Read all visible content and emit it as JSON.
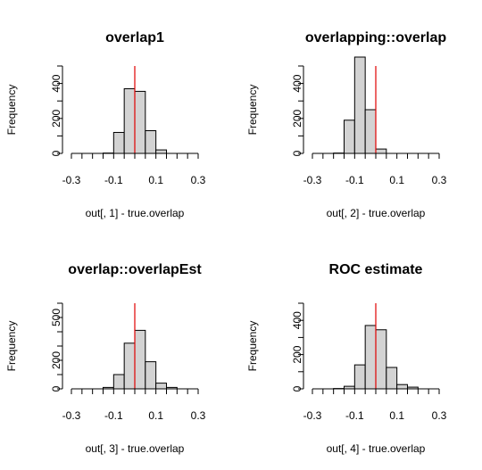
{
  "chart_data": [
    {
      "type": "bar",
      "title": "overlap1",
      "xlabel": "out[, 1] - true.overlap",
      "ylabel": "Frequency",
      "xlim": [
        -0.3,
        0.3
      ],
      "ylim": [
        0,
        500
      ],
      "x_ticks": [
        "-0.3",
        "-0.1",
        "0.1",
        "0.3"
      ],
      "y_ticks": [
        "0",
        "200",
        "400"
      ],
      "bin_width": 0.05,
      "bins": [
        {
          "from": -0.3,
          "to": -0.25,
          "count": 0
        },
        {
          "from": -0.25,
          "to": -0.2,
          "count": 0
        },
        {
          "from": -0.2,
          "to": -0.15,
          "count": 0
        },
        {
          "from": -0.15,
          "to": -0.1,
          "count": 2
        },
        {
          "from": -0.1,
          "to": -0.05,
          "count": 120
        },
        {
          "from": -0.05,
          "to": 0.0,
          "count": 370
        },
        {
          "from": 0.0,
          "to": 0.05,
          "count": 355
        },
        {
          "from": 0.05,
          "to": 0.1,
          "count": 130
        },
        {
          "from": 0.1,
          "to": 0.15,
          "count": 20
        },
        {
          "from": 0.15,
          "to": 0.2,
          "count": 0
        },
        {
          "from": 0.2,
          "to": 0.25,
          "count": 0
        },
        {
          "from": 0.25,
          "to": 0.3,
          "count": 0
        }
      ],
      "reference_line_x": 0.0,
      "reference_line_color": "#e00000"
    },
    {
      "type": "bar",
      "title": "overlapping::overlap",
      "xlabel": "out[, 2] - true.overlap",
      "ylabel": "Frequency",
      "xlim": [
        -0.3,
        0.3
      ],
      "ylim": [
        0,
        500
      ],
      "x_ticks": [
        "-0.3",
        "-0.1",
        "0.1",
        "0.3"
      ],
      "y_ticks": [
        "0",
        "200",
        "400"
      ],
      "bin_width": 0.05,
      "bins": [
        {
          "from": -0.3,
          "to": -0.25,
          "count": 0
        },
        {
          "from": -0.25,
          "to": -0.2,
          "count": 0
        },
        {
          "from": -0.2,
          "to": -0.15,
          "count": 2
        },
        {
          "from": -0.15,
          "to": -0.1,
          "count": 190
        },
        {
          "from": -0.1,
          "to": -0.05,
          "count": 560
        },
        {
          "from": -0.05,
          "to": 0.0,
          "count": 250
        },
        {
          "from": 0.0,
          "to": 0.05,
          "count": 25
        },
        {
          "from": 0.05,
          "to": 0.1,
          "count": 0
        },
        {
          "from": 0.1,
          "to": 0.15,
          "count": 0
        },
        {
          "from": 0.15,
          "to": 0.2,
          "count": 0
        },
        {
          "from": 0.2,
          "to": 0.25,
          "count": 0
        },
        {
          "from": 0.25,
          "to": 0.3,
          "count": 0
        }
      ],
      "reference_line_x": 0.0,
      "reference_line_color": "#e00000"
    },
    {
      "type": "bar",
      "title": "overlap::overlapEst",
      "xlabel": "out[, 3] - true.overlap",
      "ylabel": "Frequency",
      "xlim": [
        -0.3,
        0.3
      ],
      "ylim": [
        0,
        600
      ],
      "x_ticks": [
        "-0.3",
        "-0.1",
        "0.1",
        "0.3"
      ],
      "y_ticks": [
        "0",
        "200",
        "500"
      ],
      "bin_width": 0.05,
      "bins": [
        {
          "from": -0.3,
          "to": -0.25,
          "count": 0
        },
        {
          "from": -0.25,
          "to": -0.2,
          "count": 0
        },
        {
          "from": -0.2,
          "to": -0.15,
          "count": 0
        },
        {
          "from": -0.15,
          "to": -0.1,
          "count": 10
        },
        {
          "from": -0.1,
          "to": -0.05,
          "count": 100
        },
        {
          "from": -0.05,
          "to": 0.0,
          "count": 320
        },
        {
          "from": 0.0,
          "to": 0.05,
          "count": 410
        },
        {
          "from": 0.05,
          "to": 0.1,
          "count": 190
        },
        {
          "from": 0.1,
          "to": 0.15,
          "count": 40
        },
        {
          "from": 0.15,
          "to": 0.2,
          "count": 10
        },
        {
          "from": 0.2,
          "to": 0.25,
          "count": 0
        },
        {
          "from": 0.25,
          "to": 0.3,
          "count": 0
        }
      ],
      "reference_line_x": 0.0,
      "reference_line_color": "#e00000"
    },
    {
      "type": "bar",
      "title": "ROC estimate",
      "xlabel": "out[, 4] - true.overlap",
      "ylabel": "Frequency",
      "xlim": [
        -0.3,
        0.3
      ],
      "ylim": [
        0,
        500
      ],
      "x_ticks": [
        "-0.3",
        "-0.1",
        "0.1",
        "0.3"
      ],
      "y_ticks": [
        "0",
        "200",
        "400"
      ],
      "bin_width": 0.05,
      "bins": [
        {
          "from": -0.3,
          "to": -0.25,
          "count": 0
        },
        {
          "from": -0.25,
          "to": -0.2,
          "count": 0
        },
        {
          "from": -0.2,
          "to": -0.15,
          "count": 2
        },
        {
          "from": -0.15,
          "to": -0.1,
          "count": 15
        },
        {
          "from": -0.1,
          "to": -0.05,
          "count": 140
        },
        {
          "from": -0.05,
          "to": 0.0,
          "count": 370
        },
        {
          "from": 0.0,
          "to": 0.05,
          "count": 345
        },
        {
          "from": 0.05,
          "to": 0.1,
          "count": 125
        },
        {
          "from": 0.1,
          "to": 0.15,
          "count": 25
        },
        {
          "from": 0.15,
          "to": 0.2,
          "count": 10
        },
        {
          "from": 0.2,
          "to": 0.25,
          "count": 0
        },
        {
          "from": 0.25,
          "to": 0.3,
          "count": 0
        }
      ],
      "reference_line_x": 0.0,
      "reference_line_color": "#e00000"
    }
  ]
}
